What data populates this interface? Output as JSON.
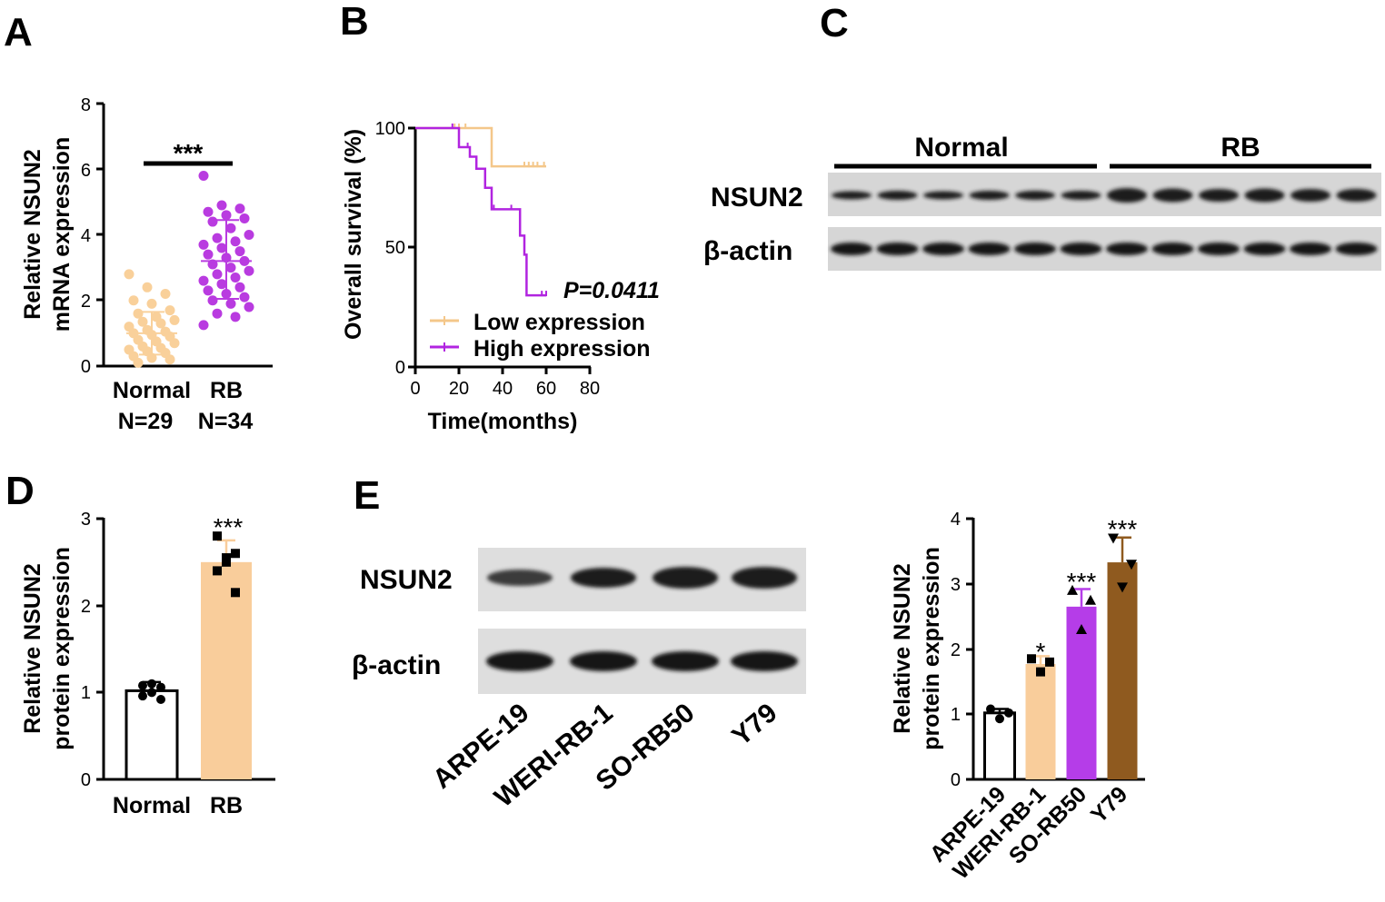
{
  "colors": {
    "normal_dots": "#f9d09a",
    "rb_dots": "#b93be0",
    "low_line": "#f4c78a",
    "high_line": "#b124e0",
    "bar_rb": "#f9cd9b",
    "bar_arpe": "#ffffff",
    "bar_weri": "#f9cd9b",
    "bar_so": "#b53de8",
    "bar_y79": "#8f5a1f"
  },
  "panels": {
    "A": {
      "label": "A",
      "ylabel1": "Relative NSUN2",
      "ylabel2": "mRNA expression",
      "yticks": [
        "0",
        "2",
        "4",
        "6",
        "8"
      ],
      "group1_name": "Normal",
      "group1_n": "N=29",
      "group2_name": "RB",
      "group2_n": "N=34",
      "sig": "***"
    },
    "B": {
      "label": "B",
      "ylabel": "Overall survival (%)",
      "xlabel": "Time(months)",
      "xticks": [
        "0",
        "20",
        "40",
        "60",
        "80"
      ],
      "yticks": [
        "0",
        "50",
        "100"
      ],
      "pvalue": "P=0.0411",
      "legend_low": "Low expression",
      "legend_high": "High expression"
    },
    "C": {
      "label": "C",
      "group_normal": "Normal",
      "group_rb": "RB",
      "row1": "NSUN2",
      "row2": "β-actin"
    },
    "D": {
      "label": "D",
      "ylabel1": "Relative NSUN2",
      "ylabel2": "protein expression",
      "yticks": [
        "0",
        "1",
        "2",
        "3"
      ],
      "cat1": "Normal",
      "cat2": "RB",
      "sig": "***"
    },
    "E": {
      "label": "E",
      "row1": "NSUN2",
      "row2": "β-actin",
      "lanes": [
        "ARPE-19",
        "WERI-RB-1",
        "SO-RB50",
        "Y79"
      ],
      "ylabel1": "Relative NSUN2",
      "ylabel2": "protein expression",
      "yticks": [
        "0",
        "1",
        "2",
        "3",
        "4"
      ],
      "sig": [
        "*",
        "***",
        "***"
      ]
    }
  },
  "chart_data": [
    {
      "type": "scatter",
      "title": "A",
      "ylabel": "Relative NSUN2 mRNA expression",
      "ylim": [
        0,
        8
      ],
      "categories": [
        "Normal",
        "RB"
      ],
      "series": [
        {
          "name": "Normal",
          "mean": 1.0,
          "sd_low": 0.35,
          "sd_high": 1.65,
          "values": [
            2.8,
            2.4,
            2.2,
            2.0,
            1.9,
            1.7,
            1.6,
            1.5,
            1.4,
            1.35,
            1.3,
            1.2,
            1.1,
            1.05,
            1.0,
            0.95,
            0.9,
            0.8,
            0.75,
            0.7,
            0.6,
            0.55,
            0.5,
            0.45,
            0.4,
            0.3,
            0.25,
            0.2,
            0.1
          ]
        },
        {
          "name": "RB",
          "mean": 3.2,
          "sd_low": 2.05,
          "sd_high": 4.45,
          "values": [
            5.8,
            4.9,
            4.8,
            4.7,
            4.6,
            4.5,
            4.4,
            4.2,
            4.0,
            3.9,
            3.8,
            3.7,
            3.6,
            3.5,
            3.4,
            3.3,
            3.2,
            3.1,
            3.0,
            2.9,
            2.8,
            2.7,
            2.6,
            2.5,
            2.4,
            2.3,
            2.2,
            2.1,
            2.0,
            1.9,
            1.8,
            1.6,
            1.5,
            1.25
          ]
        }
      ]
    },
    {
      "type": "line",
      "title": "B",
      "xlabel": "Time(months)",
      "ylabel": "Overall survival (%)",
      "xlim": [
        0,
        80
      ],
      "ylim": [
        0,
        100
      ],
      "series": [
        {
          "name": "Low expression",
          "x": [
            0,
            25,
            35,
            60
          ],
          "y": [
            100,
            100,
            84,
            84
          ],
          "censored": [
            18,
            20,
            23,
            50,
            52,
            54,
            56,
            59
          ]
        },
        {
          "name": "High expression",
          "x": [
            0,
            14,
            20,
            25,
            28,
            32,
            35,
            46,
            48,
            50,
            51,
            60
          ],
          "y": [
            100,
            100,
            92,
            88,
            83,
            75,
            66,
            66,
            55,
            47,
            30,
            30
          ],
          "censored": [
            17,
            24,
            36,
            44,
            58,
            60
          ]
        }
      ]
    },
    {
      "type": "bar",
      "title": "D",
      "ylabel": "Relative NSUN2 protein expression",
      "ylim": [
        0,
        3
      ],
      "categories": [
        "Normal",
        "RB"
      ],
      "values": [
        1.02,
        2.5
      ],
      "errors": [
        0.1,
        0.25
      ],
      "points": [
        [
          1.08,
          1.06,
          1.0,
          0.96,
          0.92,
          1.1
        ],
        [
          2.8,
          2.6,
          2.5,
          2.4,
          2.15,
          2.55
        ]
      ]
    },
    {
      "type": "bar",
      "title": "E",
      "ylabel": "Relative NSUN2 protein expression",
      "ylim": [
        0,
        4
      ],
      "categories": [
        "ARPE-19",
        "WERI-RB-1",
        "SO-RB50",
        "Y79"
      ],
      "values": [
        1.02,
        1.77,
        2.65,
        3.33
      ],
      "errors": [
        0.06,
        0.12,
        0.27,
        0.38
      ],
      "points": [
        [
          1.08,
          1.02,
          0.93
        ],
        [
          1.85,
          1.8,
          1.65
        ],
        [
          2.9,
          2.75,
          2.3
        ],
        [
          3.7,
          3.3,
          2.95
        ]
      ]
    }
  ]
}
